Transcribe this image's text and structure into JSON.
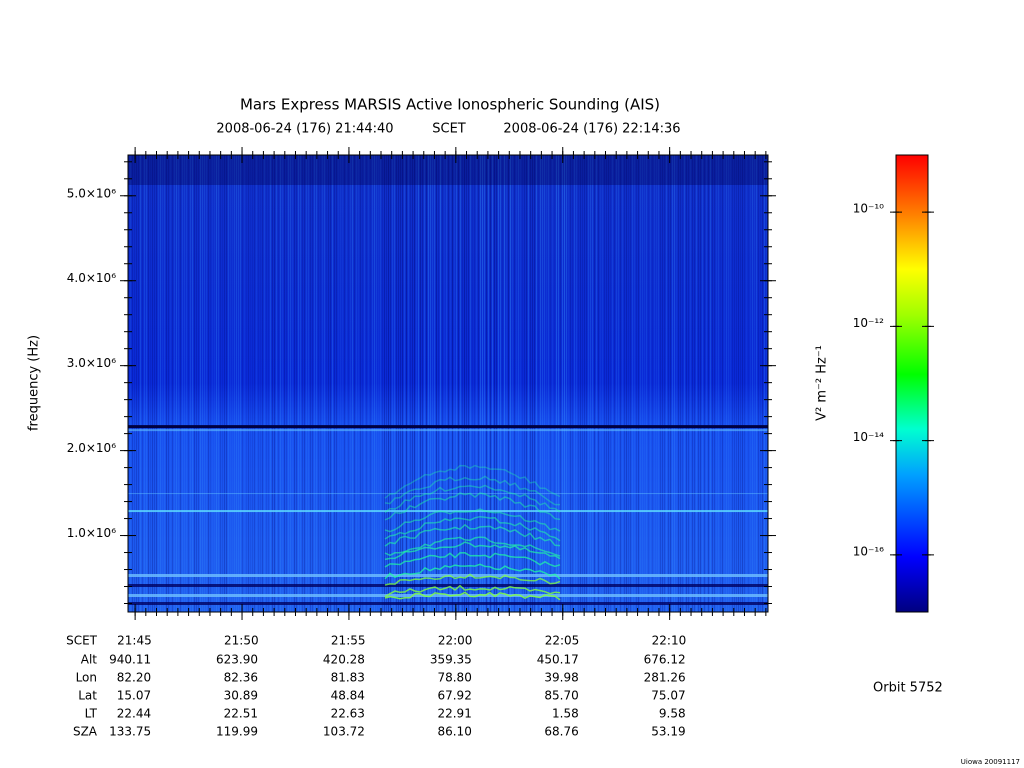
{
  "chart_data": {
    "type": "spectrogram",
    "title": "Mars Express MARSIS Active Ionospheric Sounding (AIS)",
    "start_time": "2008-06-24 (176) 21:44:40",
    "time_label": "SCET",
    "end_time": "2008-06-24 (176) 22:14:36",
    "y_label": "frequency (Hz)",
    "xlim": [
      78280,
      80076
    ],
    "xticks": [
      {
        "value": 78300,
        "label": "21:45"
      },
      {
        "value": 78600,
        "label": "21:50"
      },
      {
        "value": 78900,
        "label": "21:55"
      },
      {
        "value": 79200,
        "label": "22:00"
      },
      {
        "value": 79500,
        "label": "22:05"
      },
      {
        "value": 79800,
        "label": "22:10"
      }
    ],
    "ylim": [
      100000,
      5480000
    ],
    "yticks": [
      {
        "value": 1000000,
        "label": "1.0×10⁶"
      },
      {
        "value": 2000000,
        "label": "2.0×10⁶"
      },
      {
        "value": 3000000,
        "label": "3.0×10⁶"
      },
      {
        "value": 4000000,
        "label": "4.0×10⁶"
      },
      {
        "value": 5000000,
        "label": "5.0×10⁶"
      }
    ],
    "colorbar": {
      "label": "V² m⁻² Hz⁻¹",
      "log_scale": true,
      "zlim": [
        1e-17,
        1e-09
      ],
      "zticks": [
        {
          "value": 1e-10,
          "label": "10⁻¹⁰"
        },
        {
          "value": 1e-12,
          "label": "10⁻¹²"
        },
        {
          "value": 1e-14,
          "label": "10⁻¹⁴"
        },
        {
          "value": 1e-16,
          "label": "10⁻¹⁶"
        }
      ]
    },
    "ephemeris": {
      "row_labels": [
        "SCET",
        "Alt",
        "Lon",
        "Lat",
        "LT",
        "SZA"
      ],
      "rows": [
        [
          "940.11",
          "623.90",
          "420.28",
          "359.35",
          "450.17",
          "676.12"
        ],
        [
          "82.20",
          "82.36",
          "81.83",
          "78.80",
          "39.98",
          "281.26"
        ],
        [
          "15.07",
          "30.89",
          "48.84",
          "67.92",
          "85.70",
          "75.07"
        ],
        [
          "22.44",
          "22.51",
          "22.63",
          "22.91",
          "1.58",
          "9.58"
        ],
        [
          "133.75",
          "119.99",
          "103.72",
          "86.10",
          "68.76",
          "53.19"
        ]
      ]
    },
    "orbit": "Orbit 5752",
    "footer": "Uiowa 20091117"
  }
}
